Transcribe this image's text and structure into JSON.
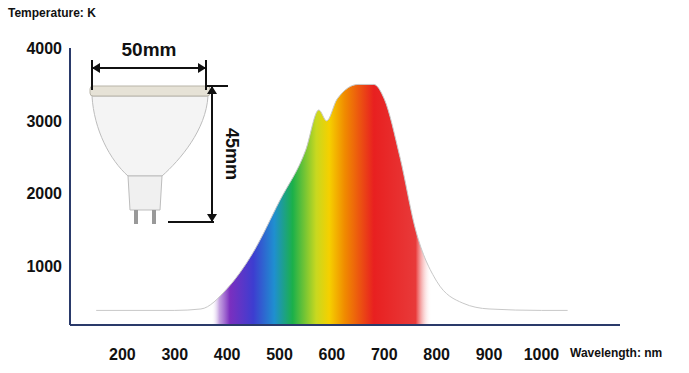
{
  "chart_data": {
    "type": "area",
    "x_label": "Wavelength: nm",
    "y_label": "Temperature: K",
    "annotations": [
      "50mm",
      "45mm"
    ],
    "x": [
      150,
      300,
      350,
      400,
      450,
      500,
      550,
      575,
      590,
      610,
      650,
      680,
      700,
      730,
      760,
      800,
      850,
      900,
      1000,
      1050
    ],
    "values": [
      400,
      400,
      420,
      700,
      1200,
      1900,
      2600,
      3150,
      3000,
      3300,
      3500,
      3500,
      3300,
      2500,
      1500,
      800,
      500,
      420,
      400,
      400
    ],
    "xlim": [
      100,
      1150
    ],
    "xticks": [
      200,
      300,
      400,
      500,
      600,
      700,
      800,
      900,
      1000
    ],
    "ylim": [
      200,
      4000
    ],
    "yticks": [
      1000,
      2000,
      3000,
      4000
    ],
    "grid": false
  }
}
